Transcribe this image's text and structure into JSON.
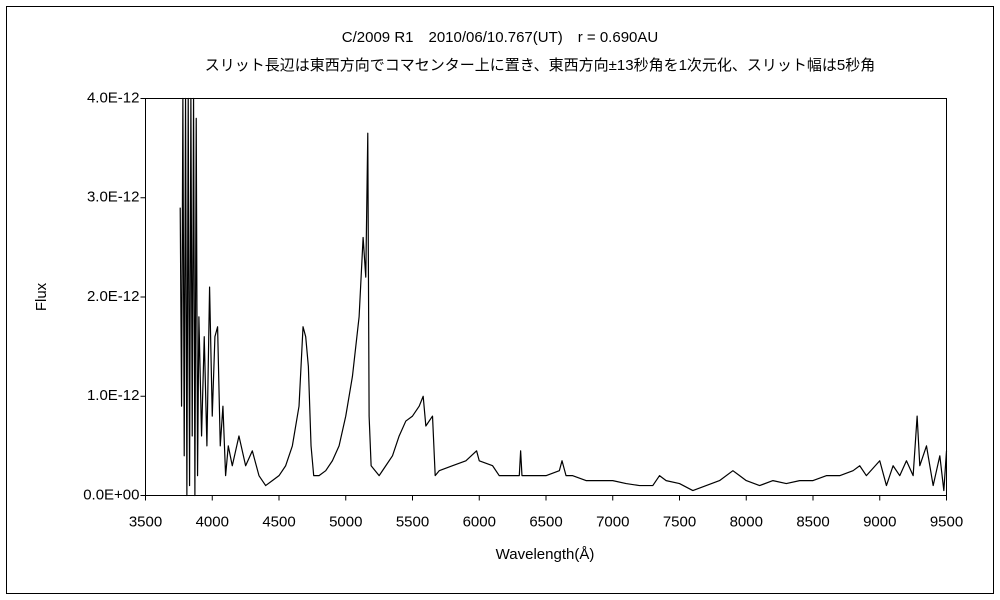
{
  "chart_data": {
    "type": "line",
    "title": "C/2009 R1　2010/06/10.767(UT)　r = 0.690AU",
    "subtitle": "スリット長辺は東西方向でコマセンター上に置き、東西方向±13秒角を1次元化、スリット幅は5秒角",
    "x_label": "Wavelength(Å)",
    "y_label": "Flux",
    "color": "#000000",
    "xlim": [
      3500,
      9500
    ],
    "xticks": [
      3500,
      4000,
      4500,
      5000,
      5500,
      6000,
      6500,
      7000,
      7500,
      8000,
      8500,
      9000,
      9500
    ],
    "ylim": [
      0,
      4e-12
    ],
    "yticks": [
      {
        "value": 0,
        "label": "0.0E+00"
      },
      {
        "value": 1e-12,
        "label": "1.0E-12"
      },
      {
        "value": 2e-12,
        "label": "2.0E-12"
      },
      {
        "value": 3e-12,
        "label": "3.0E-12"
      },
      {
        "value": 4e-12,
        "label": "4.0E-12"
      }
    ],
    "grid": false,
    "x": [
      3760,
      3770,
      3780,
      3790,
      3800,
      3810,
      3820,
      3830,
      3840,
      3850,
      3860,
      3870,
      3880,
      3890,
      3900,
      3920,
      3940,
      3960,
      3980,
      4000,
      4020,
      4040,
      4060,
      4080,
      4100,
      4120,
      4150,
      4200,
      4250,
      4300,
      4350,
      4400,
      4450,
      4500,
      4550,
      4600,
      4650,
      4680,
      4700,
      4720,
      4740,
      4760,
      4800,
      4850,
      4900,
      4950,
      5000,
      5050,
      5100,
      5130,
      5150,
      5165,
      5175,
      5190,
      5250,
      5300,
      5350,
      5400,
      5450,
      5500,
      5550,
      5580,
      5600,
      5650,
      5670,
      5700,
      5800,
      5900,
      5980,
      6000,
      6100,
      6150,
      6200,
      6300,
      6310,
      6320,
      6400,
      6500,
      6600,
      6620,
      6650,
      6700,
      6800,
      6900,
      7000,
      7100,
      7200,
      7300,
      7350,
      7400,
      7500,
      7600,
      7700,
      7800,
      7900,
      7950,
      8000,
      8100,
      8200,
      8300,
      8400,
      8500,
      8600,
      8700,
      8800,
      8850,
      8900,
      9000,
      9050,
      9100,
      9150,
      9200,
      9250,
      9280,
      9300,
      9350,
      9400,
      9450,
      9480,
      9500
    ],
    "values": [
      2.9e-12,
      9e-13,
      4e-12,
      4e-13,
      4e-12,
      0,
      4e-12,
      1e-13,
      4e-12,
      6e-13,
      4e-12,
      0,
      3.8e-12,
      2e-13,
      1.8e-12,
      6e-13,
      1.6e-12,
      5e-13,
      2.1e-12,
      8e-13,
      1.6e-12,
      1.7e-12,
      5e-13,
      9e-13,
      2e-13,
      5e-13,
      3e-13,
      6e-13,
      3e-13,
      4.5e-13,
      2e-13,
      1e-13,
      1.5e-13,
      2e-13,
      3e-13,
      5e-13,
      9e-13,
      1.7e-12,
      1.6e-12,
      1.3e-12,
      5e-13,
      2e-13,
      2e-13,
      2.5e-13,
      3.5e-13,
      5e-13,
      8e-13,
      1.2e-12,
      1.8e-12,
      2.6e-12,
      2.2e-12,
      3.65e-12,
      8e-13,
      3e-13,
      2e-13,
      3e-13,
      4e-13,
      6e-13,
      7.5e-13,
      8e-13,
      9e-13,
      1e-12,
      7e-13,
      8e-13,
      2e-13,
      2.5e-13,
      3e-13,
      3.5e-13,
      4.5e-13,
      3.5e-13,
      3e-13,
      2e-13,
      2e-13,
      2e-13,
      4.5e-13,
      2e-13,
      2e-13,
      2e-13,
      2.5e-13,
      3.5e-13,
      2e-13,
      2e-13,
      1.5e-13,
      1.5e-13,
      1.5e-13,
      1.2e-13,
      1e-13,
      1e-13,
      2e-13,
      1.5e-13,
      1.2e-13,
      5e-14,
      1e-13,
      1.5e-13,
      2.5e-13,
      2e-13,
      1.5e-13,
      1e-13,
      1.5e-13,
      1.2e-13,
      1.5e-13,
      1.5e-13,
      2e-13,
      2e-13,
      2.5e-13,
      3e-13,
      2e-13,
      3.5e-13,
      1e-13,
      3e-13,
      2e-13,
      3.5e-13,
      2e-13,
      8e-13,
      3e-13,
      5e-13,
      1e-13,
      4e-13,
      5e-14,
      4.5e-13
    ]
  }
}
